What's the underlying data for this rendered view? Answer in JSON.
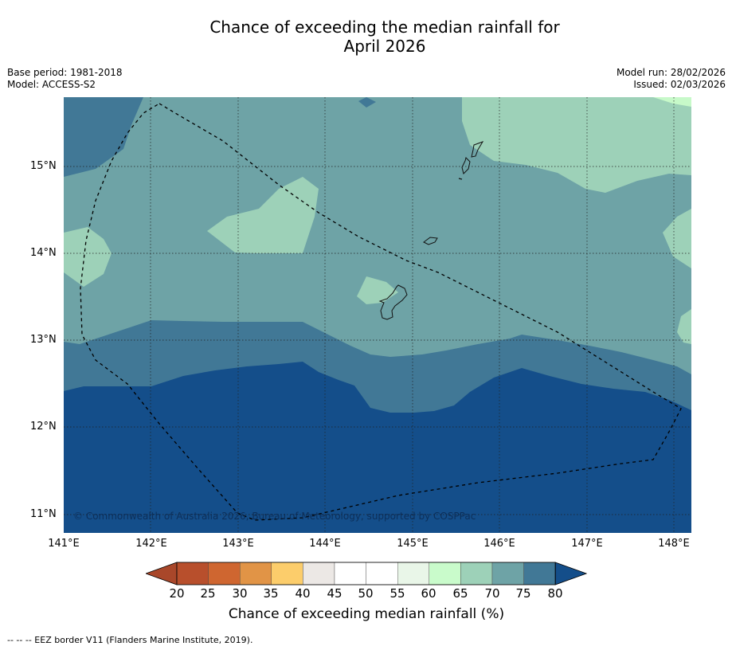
{
  "title": {
    "line1": "Chance of exceeding the median rainfall for",
    "line2": "April 2026"
  },
  "meta": {
    "base_period": "Base period: 1981-2018",
    "model": "Model: ACCESS-S2",
    "model_run": "Model run: 28/02/2026",
    "issued": "Issued: 02/03/2026"
  },
  "map": {
    "copyright": "© Commonwealth of Australia 2026, Bureau of Meteorology, supported by COSPPac",
    "lat_ticks": [
      "15°N",
      "14°N",
      "13°N",
      "12°N",
      "11°N"
    ],
    "lon_ticks": [
      "141°E",
      "142°E",
      "143°E",
      "144°E",
      "145°E",
      "146°E",
      "147°E",
      "148°E"
    ],
    "colors": {
      "band_55_60": "#e5f5e8",
      "band_60_65": "#c7f9c9",
      "band_65_70": "#9dd1b8",
      "band_70_75": "#6ea3a6",
      "band_75_80": "#417896",
      "band_80_plus": "#144e8a"
    }
  },
  "colorbar": {
    "title": "Chance of exceeding median rainfall (%)",
    "labels": [
      "20",
      "25",
      "30",
      "35",
      "40",
      "45",
      "50",
      "55",
      "60",
      "65",
      "70",
      "75",
      "80"
    ],
    "colors": [
      "#a9472a",
      "#b84f2c",
      "#cf6630",
      "#e19446",
      "#fccd6b",
      "#ece8e5",
      "#ffffff",
      "#ffffff",
      "#e9f6e8",
      "#c9fbcb",
      "#9dd1b8",
      "#6ea3a6",
      "#417896",
      "#144e8a"
    ]
  },
  "legend_note": "--  --  -- EEZ border V11 (Flanders Marine Institute, 2019)."
}
